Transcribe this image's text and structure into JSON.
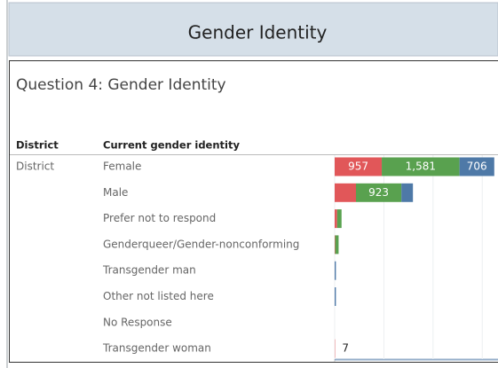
{
  "chart_data": {
    "type": "bar",
    "header": "Gender Identity",
    "title": "Question 4: Gender Identity",
    "column_headers": [
      "District",
      "Current gender identity"
    ],
    "group": "District",
    "categories": [
      "Female",
      "Male",
      "Prefer not to respond",
      "Genderqueer/Gender-nonconforming",
      "Transgender man",
      "Other not listed here",
      "No Response",
      "Transgender woman"
    ],
    "series": [
      {
        "color": "#e15759",
        "values": [
          957,
          433,
          50,
          10,
          0,
          0,
          null,
          7
        ],
        "value_labels": [
          "957",
          null,
          null,
          null,
          null,
          null,
          null,
          "7"
        ]
      },
      {
        "color": "#59a14f",
        "values": [
          1581,
          923,
          90,
          70,
          0,
          0,
          null,
          0
        ],
        "value_labels": [
          "1,581",
          "923",
          null,
          null,
          null,
          null,
          null,
          null
        ]
      },
      {
        "color": "#4e79a7",
        "values": [
          706,
          235,
          0,
          0,
          25,
          25,
          null,
          0
        ],
        "value_labels": [
          "706",
          null,
          null,
          null,
          null,
          null,
          null,
          null
        ]
      }
    ],
    "xlim": [
      0,
      3320
    ],
    "xticks": [
      0,
      1000,
      2000,
      3000
    ],
    "grid": true
  }
}
